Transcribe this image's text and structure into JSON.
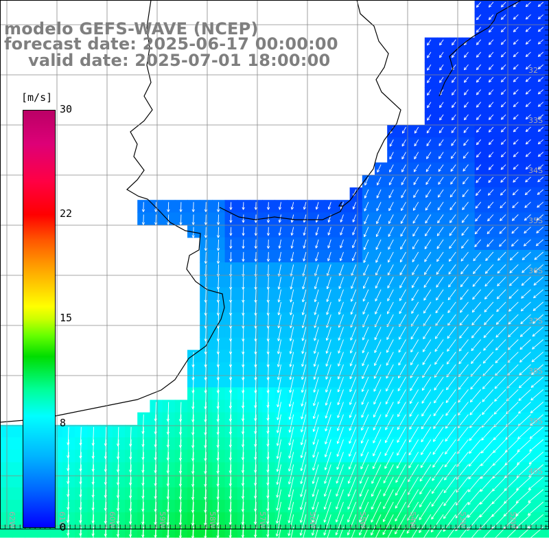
{
  "titles": {
    "model": "modelo GEFS-WAVE (NCEP)",
    "forecast": "forecast date: 2025-06-17 00:00:00",
    "valid": "valid date: 2025-07-01 18:00:00"
  },
  "colorbar": {
    "unit": "[m/s]",
    "ticks": [
      "30",
      "22",
      "15",
      "8",
      "0"
    ],
    "stops": [
      "#0000ff",
      "#00ffff",
      "#00dd00",
      "#ffff00",
      "#ff0000",
      "#bb0066"
    ]
  },
  "map": {
    "lat_labels": [
      "32",
      "33S",
      "34S",
      "35S",
      "36S",
      "37S",
      "38S",
      "39S",
      "40S"
    ],
    "lon_labels": [
      "62W",
      "61W",
      "60W",
      "59W",
      "58W",
      "57W",
      "56W",
      "55W",
      "54W",
      "53W",
      "52W"
    ],
    "wind_direction": "south-southwest"
  }
}
